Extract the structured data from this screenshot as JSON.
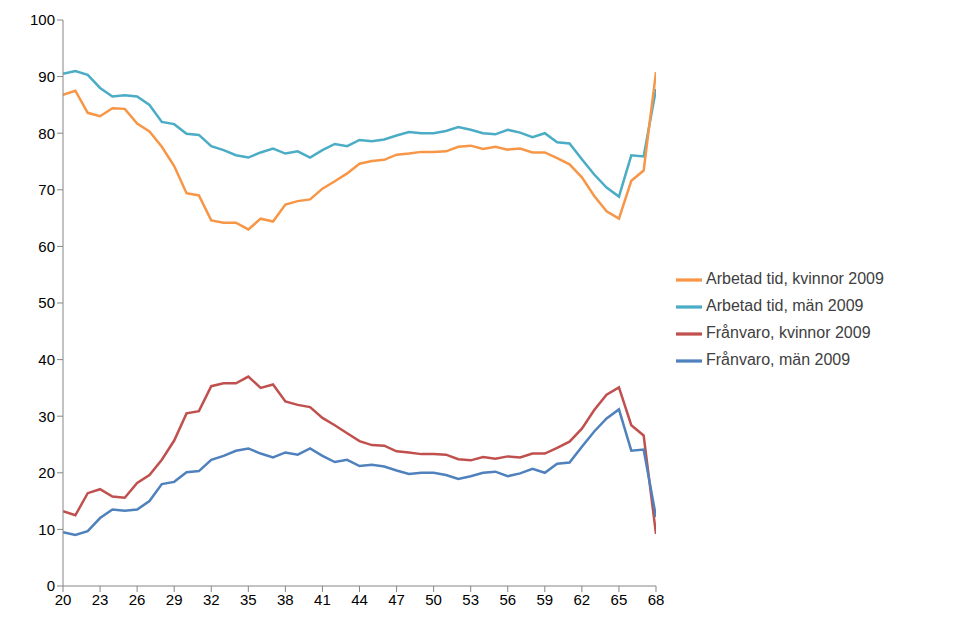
{
  "chart_data": {
    "type": "line",
    "x": [
      20,
      21,
      22,
      23,
      24,
      25,
      26,
      27,
      28,
      29,
      30,
      31,
      32,
      33,
      34,
      35,
      36,
      37,
      38,
      39,
      40,
      41,
      42,
      43,
      44,
      45,
      46,
      47,
      48,
      49,
      50,
      51,
      52,
      53,
      54,
      55,
      56,
      57,
      58,
      59,
      60,
      61,
      62,
      63,
      64,
      65,
      66,
      67,
      68
    ],
    "series": [
      {
        "name": "Arbetad tid, män 2009",
        "color": "#4bacc6",
        "values": [
          90.5,
          91,
          90.3,
          88,
          86.5,
          86.7,
          86.5,
          85,
          82,
          81.6,
          79.9,
          79.7,
          77.7,
          77,
          76.1,
          75.7,
          76.6,
          77.3,
          76.4,
          76.8,
          75.7,
          77,
          78.1,
          77.7,
          78.8,
          78.6,
          78.9,
          79.6,
          80.2,
          80,
          80,
          80.4,
          81.1,
          80.6,
          80,
          79.8,
          80.6,
          80.1,
          79.3,
          80,
          78.4,
          78.2,
          75.4,
          72.7,
          70.4,
          68.8,
          76.1,
          75.9,
          87.8
        ]
      },
      {
        "name": "Arbetad tid, kvinnor 2009",
        "color": "#f79646",
        "values": [
          86.8,
          87.5,
          83.6,
          83,
          84.4,
          84.3,
          81.7,
          80.3,
          77.6,
          74.2,
          69.4,
          69,
          64.6,
          64.2,
          64.2,
          63,
          64.9,
          64.4,
          67.4,
          68,
          68.3,
          70.2,
          71.5,
          72.9,
          74.6,
          75.1,
          75.3,
          76.2,
          76.4,
          76.7,
          76.7,
          76.8,
          77.6,
          77.8,
          77.2,
          77.6,
          77.1,
          77.3,
          76.6,
          76.6,
          75.6,
          74.5,
          72.2,
          68.9,
          66.2,
          64.9,
          71.6,
          73.4,
          90.8
        ]
      },
      {
        "name": "Frånvaro, kvinnor 2009",
        "color": "#c0504d",
        "values": [
          13.2,
          12.5,
          16.4,
          17.1,
          15.8,
          15.6,
          18.2,
          19.6,
          22.3,
          25.7,
          30.5,
          30.9,
          35.3,
          35.8,
          35.8,
          37,
          35,
          35.6,
          32.6,
          32,
          31.6,
          29.7,
          28.4,
          27,
          25.6,
          24.9,
          24.8,
          23.8,
          23.6,
          23.3,
          23.3,
          23.2,
          22.4,
          22.2,
          22.8,
          22.5,
          22.9,
          22.7,
          23.4,
          23.4,
          24.4,
          25.5,
          27.8,
          31.1,
          33.8,
          35.1,
          28.4,
          26.6,
          9.2
        ]
      },
      {
        "name": "Frånvaro, män 2009",
        "color": "#4f81bd",
        "values": [
          9.5,
          9,
          9.7,
          12,
          13.5,
          13.3,
          13.5,
          15,
          18,
          18.4,
          20.1,
          20.3,
          22.3,
          23,
          23.9,
          24.3,
          23.4,
          22.7,
          23.6,
          23.2,
          24.3,
          23,
          21.9,
          22.3,
          21.2,
          21.4,
          21.1,
          20.4,
          19.8,
          20,
          20,
          19.6,
          18.9,
          19.4,
          20,
          20.2,
          19.4,
          19.9,
          20.7,
          20,
          21.6,
          21.8,
          24.6,
          27.3,
          29.6,
          31.2,
          23.9,
          24.1,
          12.2
        ]
      }
    ],
    "xlim": [
      20,
      68
    ],
    "xticks": [
      20,
      23,
      26,
      29,
      32,
      35,
      38,
      41,
      44,
      47,
      50,
      53,
      56,
      59,
      62,
      65,
      68
    ],
    "ylim": [
      0,
      100
    ],
    "yticks": [
      0,
      10,
      20,
      30,
      40,
      50,
      60,
      70,
      80,
      90,
      100
    ],
    "grid": false,
    "legend": "right"
  }
}
